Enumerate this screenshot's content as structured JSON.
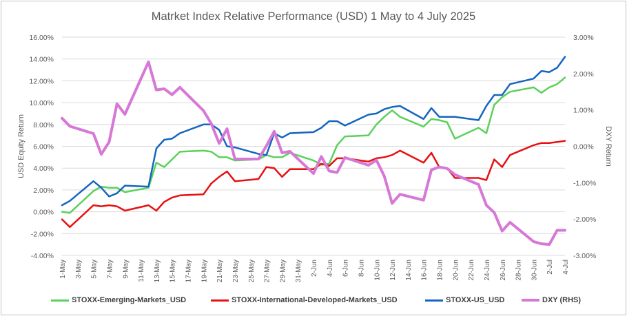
{
  "chart_data": {
    "type": "line",
    "title": "Matrket Index Relative Performance (USD) 1 May to 4 July 2025",
    "ylabel": "USD Equity Return",
    "y2label": "DXY Return",
    "ylim": [
      -0.04,
      0.16
    ],
    "y2lim": [
      -0.03,
      0.03
    ],
    "yticks": [
      "-4.00%",
      "-2.00%",
      "0.00%",
      "2.00%",
      "4.00%",
      "6.00%",
      "8.00%",
      "10.00%",
      "12.00%",
      "14.00%",
      "16.00%"
    ],
    "y2ticks": [
      "-3.00%",
      "-2.00%",
      "-1.00%",
      "0.00%",
      "1.00%",
      "2.00%",
      "3.00%"
    ],
    "xticks": [
      "1-May",
      "3-May",
      "5-May",
      "7-May",
      "9-May",
      "11-May",
      "13-May",
      "15-May",
      "17-May",
      "19-May",
      "21-May",
      "23-May",
      "25-May",
      "27-May",
      "29-May",
      "31-May",
      "2-Jun",
      "4-Jun",
      "6-Jun",
      "8-Jun",
      "10-Jun",
      "12-Jun",
      "14-Jun",
      "16-Jun",
      "18-Jun",
      "20-Jun",
      "22-Jun",
      "24-Jun",
      "26-Jun",
      "28-Jun",
      "30-Jun",
      "2-Jul",
      "4-Jul"
    ],
    "grid": true,
    "legend_position": "bottom",
    "series": [
      {
        "name": "STOXX-Emerging-Markets_USD",
        "axis": "left",
        "color": "#5ad15a",
        "points": [
          [
            "1-May",
            0.0
          ],
          [
            "2-May",
            -0.001
          ],
          [
            "5-May",
            0.019
          ],
          [
            "6-May",
            0.023
          ],
          [
            "7-May",
            0.022
          ],
          [
            "8-May",
            0.022
          ],
          [
            "9-May",
            0.018
          ],
          [
            "12-May",
            0.022
          ],
          [
            "13-May",
            0.045
          ],
          [
            "14-May",
            0.041
          ],
          [
            "15-May",
            0.048
          ],
          [
            "16-May",
            0.055
          ],
          [
            "19-May",
            0.056
          ],
          [
            "20-May",
            0.055
          ],
          [
            "21-May",
            0.05
          ],
          [
            "22-May",
            0.05
          ],
          [
            "23-May",
            0.047
          ],
          [
            "26-May",
            0.048
          ],
          [
            "27-May",
            0.052
          ],
          [
            "28-May",
            0.05
          ],
          [
            "29-May",
            0.05
          ],
          [
            "30-May",
            0.054
          ],
          [
            "2-Jun",
            0.047
          ],
          [
            "3-Jun",
            0.043
          ],
          [
            "4-Jun",
            0.044
          ],
          [
            "5-Jun",
            0.061
          ],
          [
            "6-Jun",
            0.069
          ],
          [
            "9-Jun",
            0.07
          ],
          [
            "10-Jun",
            0.08
          ],
          [
            "11-Jun",
            0.087
          ],
          [
            "12-Jun",
            0.093
          ],
          [
            "13-Jun",
            0.087
          ],
          [
            "16-Jun",
            0.078
          ],
          [
            "17-Jun",
            0.085
          ],
          [
            "18-Jun",
            0.084
          ],
          [
            "19-Jun",
            0.082
          ],
          [
            "20-Jun",
            0.067
          ],
          [
            "23-Jun",
            0.077
          ],
          [
            "24-Jun",
            0.072
          ],
          [
            "25-Jun",
            0.098
          ],
          [
            "26-Jun",
            0.105
          ],
          [
            "27-Jun",
            0.11
          ],
          [
            "30-Jun",
            0.114
          ],
          [
            "1-Jul",
            0.109
          ],
          [
            "2-Jul",
            0.114
          ],
          [
            "3-Jul",
            0.117
          ],
          [
            "4-Jul",
            0.123
          ]
        ]
      },
      {
        "name": "STOXX-International-Developed-Markets_USD",
        "axis": "left",
        "color": "#e81010",
        "points": [
          [
            "1-May",
            -0.007
          ],
          [
            "2-May",
            -0.014
          ],
          [
            "5-May",
            0.006
          ],
          [
            "6-May",
            0.005
          ],
          [
            "7-May",
            0.006
          ],
          [
            "8-May",
            0.005
          ],
          [
            "9-May",
            0.001
          ],
          [
            "12-May",
            0.006
          ],
          [
            "13-May",
            0.001
          ],
          [
            "14-May",
            0.009
          ],
          [
            "15-May",
            0.013
          ],
          [
            "16-May",
            0.015
          ],
          [
            "19-May",
            0.016
          ],
          [
            "20-May",
            0.026
          ],
          [
            "21-May",
            0.032
          ],
          [
            "22-May",
            0.037
          ],
          [
            "23-May",
            0.028
          ],
          [
            "26-May",
            0.03
          ],
          [
            "27-May",
            0.041
          ],
          [
            "28-May",
            0.04
          ],
          [
            "29-May",
            0.032
          ],
          [
            "30-May",
            0.039
          ],
          [
            "2-Jun",
            0.039
          ],
          [
            "3-Jun",
            0.044
          ],
          [
            "4-Jun",
            0.042
          ],
          [
            "5-Jun",
            0.049
          ],
          [
            "6-Jun",
            0.049
          ],
          [
            "9-Jun",
            0.046
          ],
          [
            "10-Jun",
            0.049
          ],
          [
            "11-Jun",
            0.05
          ],
          [
            "12-Jun",
            0.052
          ],
          [
            "13-Jun",
            0.056
          ],
          [
            "16-Jun",
            0.045
          ],
          [
            "17-Jun",
            0.054
          ],
          [
            "18-Jun",
            0.041
          ],
          [
            "19-Jun",
            0.04
          ],
          [
            "20-Jun",
            0.031
          ],
          [
            "23-Jun",
            0.031
          ],
          [
            "24-Jun",
            0.029
          ],
          [
            "25-Jun",
            0.048
          ],
          [
            "26-Jun",
            0.041
          ],
          [
            "27-Jun",
            0.052
          ],
          [
            "30-Jun",
            0.061
          ],
          [
            "1-Jul",
            0.063
          ],
          [
            "2-Jul",
            0.063
          ],
          [
            "3-Jul",
            0.064
          ],
          [
            "4-Jul",
            0.065
          ]
        ]
      },
      {
        "name": "STOXX-US_USD",
        "axis": "left",
        "color": "#1565c0",
        "points": [
          [
            "1-May",
            0.006
          ],
          [
            "2-May",
            0.01
          ],
          [
            "5-May",
            0.028
          ],
          [
            "6-May",
            0.022
          ],
          [
            "7-May",
            0.014
          ],
          [
            "8-May",
            0.017
          ],
          [
            "9-May",
            0.024
          ],
          [
            "12-May",
            0.023
          ],
          [
            "13-May",
            0.058
          ],
          [
            "14-May",
            0.066
          ],
          [
            "15-May",
            0.067
          ],
          [
            "16-May",
            0.072
          ],
          [
            "19-May",
            0.08
          ],
          [
            "20-May",
            0.08
          ],
          [
            "21-May",
            0.075
          ],
          [
            "22-May",
            0.06
          ],
          [
            "23-May",
            0.059
          ],
          [
            "26-May",
            0.053
          ],
          [
            "27-May",
            0.052
          ],
          [
            "28-May",
            0.072
          ],
          [
            "29-May",
            0.068
          ],
          [
            "30-May",
            0.072
          ],
          [
            "2-Jun",
            0.073
          ],
          [
            "3-Jun",
            0.077
          ],
          [
            "4-Jun",
            0.083
          ],
          [
            "5-Jun",
            0.083
          ],
          [
            "6-Jun",
            0.079
          ],
          [
            "9-Jun",
            0.089
          ],
          [
            "10-Jun",
            0.09
          ],
          [
            "11-Jun",
            0.094
          ],
          [
            "12-Jun",
            0.096
          ],
          [
            "13-Jun",
            0.097
          ],
          [
            "16-Jun",
            0.085
          ],
          [
            "17-Jun",
            0.095
          ],
          [
            "18-Jun",
            0.087
          ],
          [
            "19-Jun",
            0.087
          ],
          [
            "20-Jun",
            0.087
          ],
          [
            "23-Jun",
            0.084
          ],
          [
            "24-Jun",
            0.097
          ],
          [
            "25-Jun",
            0.107
          ],
          [
            "26-Jun",
            0.107
          ],
          [
            "27-Jun",
            0.117
          ],
          [
            "30-Jun",
            0.122
          ],
          [
            "1-Jul",
            0.129
          ],
          [
            "2-Jul",
            0.128
          ],
          [
            "3-Jul",
            0.132
          ],
          [
            "4-Jul",
            0.142
          ]
        ]
      },
      {
        "name": "DXY (RHS)",
        "axis": "right",
        "color": "#d678d6",
        "points": [
          [
            "1-May",
            0.0077
          ],
          [
            "2-May",
            0.0055
          ],
          [
            "5-May",
            0.0035
          ],
          [
            "6-May",
            -0.0022
          ],
          [
            "7-May",
            0.0012
          ],
          [
            "8-May",
            0.0117
          ],
          [
            "9-May",
            0.0088
          ],
          [
            "12-May",
            0.0232
          ],
          [
            "13-May",
            0.0155
          ],
          [
            "14-May",
            0.0158
          ],
          [
            "15-May",
            0.0142
          ],
          [
            "16-May",
            0.0162
          ],
          [
            "19-May",
            0.0098
          ],
          [
            "20-May",
            0.0062
          ],
          [
            "21-May",
            0.0008
          ],
          [
            "22-May",
            0.0048
          ],
          [
            "23-May",
            -0.0035
          ],
          [
            "26-May",
            -0.0035
          ],
          [
            "27-May",
            0.0001
          ],
          [
            "28-May",
            0.0041
          ],
          [
            "29-May",
            -0.0018
          ],
          [
            "30-May",
            -0.0014
          ],
          [
            "2-Jun",
            -0.0075
          ],
          [
            "3-Jun",
            -0.0028
          ],
          [
            "4-Jun",
            -0.0068
          ],
          [
            "5-Jun",
            -0.0072
          ],
          [
            "6-Jun",
            -0.0031
          ],
          [
            "9-Jun",
            -0.0052
          ],
          [
            "10-Jun",
            -0.0038
          ],
          [
            "11-Jun",
            -0.0082
          ],
          [
            "12-Jun",
            -0.0157
          ],
          [
            "13-Jun",
            -0.0132
          ],
          [
            "16-Jun",
            -0.0148
          ],
          [
            "17-Jun",
            -0.0065
          ],
          [
            "18-Jun",
            -0.0057
          ],
          [
            "19-Jun",
            -0.0061
          ],
          [
            "20-Jun",
            -0.0078
          ],
          [
            "23-Jun",
            -0.0105
          ],
          [
            "24-Jun",
            -0.0162
          ],
          [
            "25-Jun",
            -0.0182
          ],
          [
            "26-Jun",
            -0.0233
          ],
          [
            "27-Jun",
            -0.0209
          ],
          [
            "30-Jun",
            -0.0262
          ],
          [
            "1-Jul",
            -0.0268
          ],
          [
            "2-Jul",
            -0.027
          ],
          [
            "3-Jul",
            -0.0231
          ],
          [
            "4-Jul",
            -0.0231
          ]
        ]
      }
    ]
  }
}
